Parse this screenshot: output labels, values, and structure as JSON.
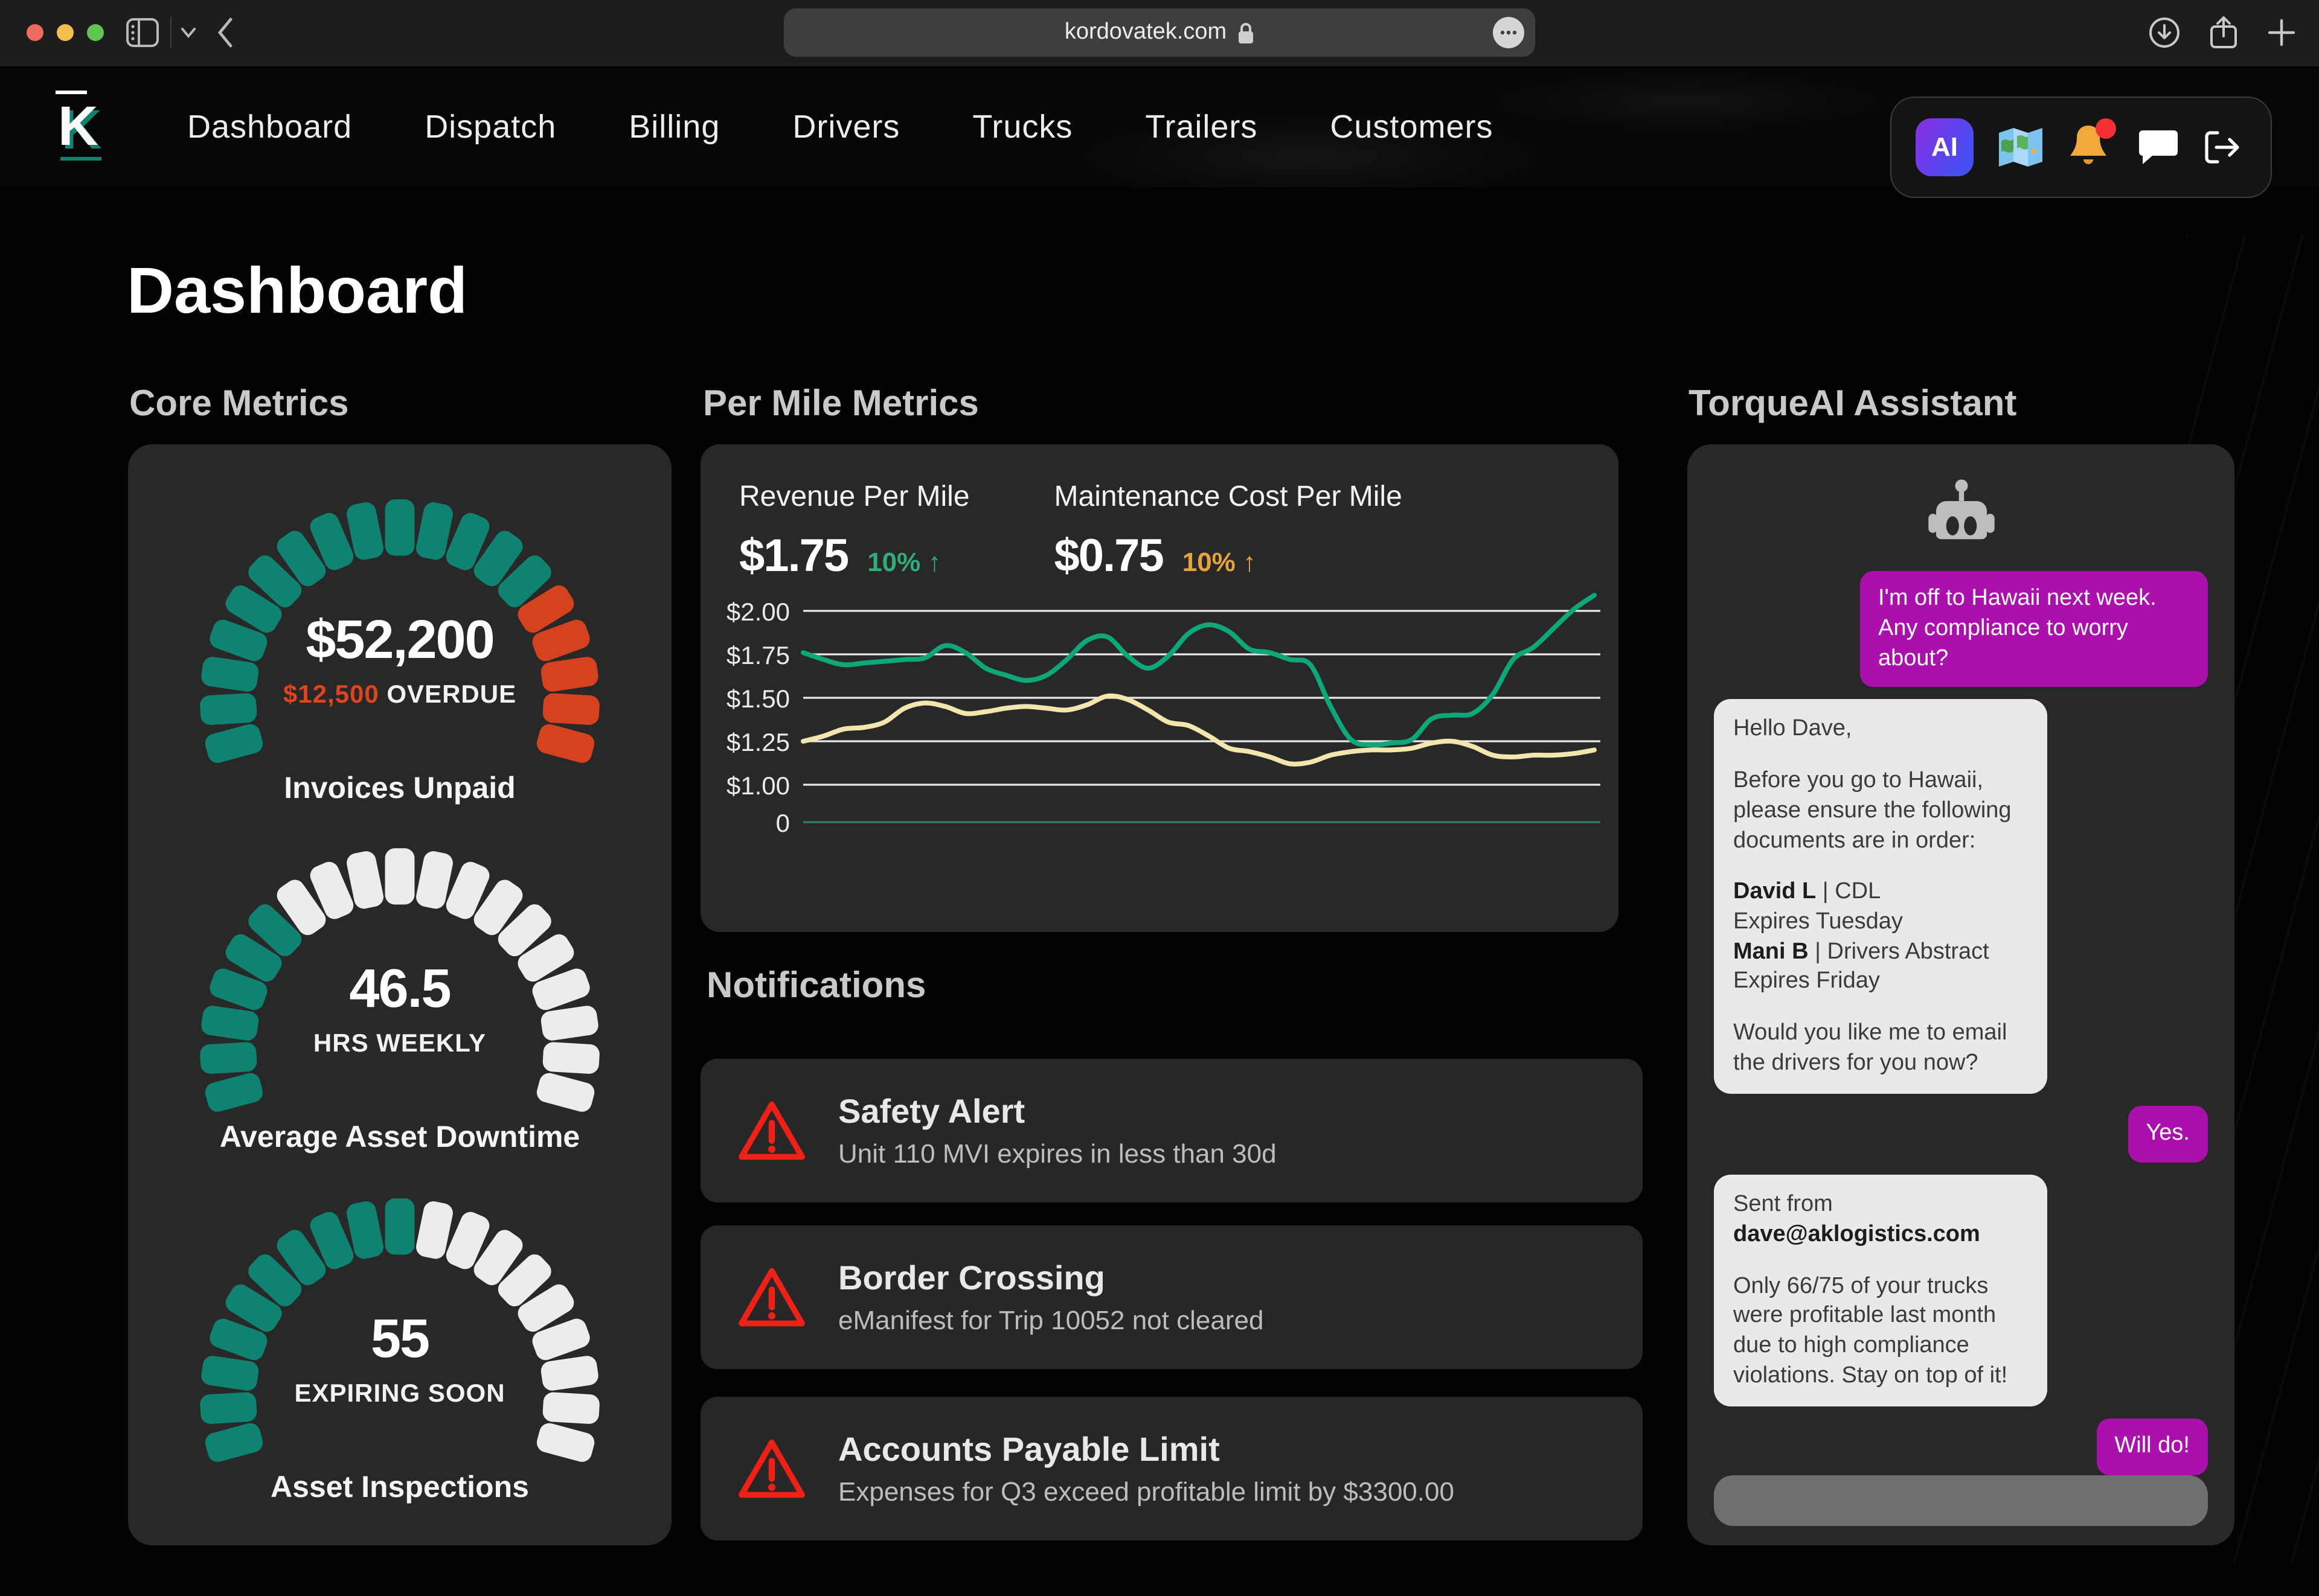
{
  "browser": {
    "url": "kordovatek.com",
    "traffic_lights": [
      "#ed6a5e",
      "#f5bf4f",
      "#61c554"
    ]
  },
  "nav": {
    "logo": "K",
    "items": [
      "Dashboard",
      "Dispatch",
      "Billing",
      "Drivers",
      "Trucks",
      "Trailers",
      "Customers"
    ],
    "ai_button": "AI",
    "bell_has_alert": true
  },
  "page": {
    "title": "Dashboard"
  },
  "core_metrics": {
    "heading": "Core Metrics",
    "gauges": [
      {
        "value": "$52,200",
        "sub_highlight": "$12,500",
        "sub_highlight_color": "#e0441f",
        "sub_rest": " OVERDUE",
        "label": "Invoices Unpaid",
        "segments": 19,
        "filled": 14,
        "filled_color": "#0f8372",
        "rest_color": "#d6421f"
      },
      {
        "value": "46.5",
        "sub_highlight": "",
        "sub_highlight_color": "",
        "sub_rest": "HRS WEEKLY",
        "label": "Average Asset Downtime",
        "segments": 19,
        "filled": 6,
        "filled_color": "#0f8372",
        "rest_color": "#ececec"
      },
      {
        "value": "55",
        "sub_highlight": "",
        "sub_highlight_color": "",
        "sub_rest": "EXPIRING SOON",
        "label": "Asset Inspections",
        "segments": 19,
        "filled": 10,
        "filled_color": "#0f8372",
        "rest_color": "#ececec"
      }
    ]
  },
  "per_mile": {
    "heading": "Per Mile Metrics",
    "metrics": [
      {
        "label": "Revenue Per Mile",
        "value": "$1.75",
        "delta": "10% ↑",
        "delta_color": "#2fae7c"
      },
      {
        "label": "Maintenance Cost Per Mile",
        "value": "$0.75",
        "delta": "10% ↑",
        "delta_color": "#e6a53c"
      }
    ]
  },
  "chart_data": {
    "type": "line",
    "title": "Per Mile Metrics",
    "xlabel": "",
    "ylabel": "",
    "y_ticks": [
      "$2.00",
      "$1.75",
      "$1.50",
      "$1.25",
      "$1.00",
      "0"
    ],
    "y_tick_values": [
      2.0,
      1.75,
      1.5,
      1.25,
      1.0,
      0
    ],
    "ylim": [
      0,
      2.1
    ],
    "grid": "horizontal",
    "legend": "none (series named by metric headers above chart)",
    "baseline_color": "#2c8063",
    "series": [
      {
        "name": "Revenue Per Mile",
        "color": "#0da87a",
        "values": [
          1.76,
          1.72,
          1.69,
          1.7,
          1.71,
          1.72,
          1.73,
          1.8,
          1.76,
          1.67,
          1.63,
          1.6,
          1.63,
          1.72,
          1.83,
          1.85,
          1.74,
          1.67,
          1.74,
          1.87,
          1.92,
          1.88,
          1.78,
          1.76,
          1.72,
          1.69,
          1.45,
          1.26,
          1.23,
          1.24,
          1.26,
          1.38,
          1.4,
          1.41,
          1.52,
          1.72,
          1.79,
          1.9,
          2.01,
          2.09
        ]
      },
      {
        "name": "Maintenance Cost Per Mile",
        "color": "#f3e5ae",
        "values": [
          1.25,
          1.28,
          1.32,
          1.33,
          1.36,
          1.44,
          1.47,
          1.45,
          1.41,
          1.42,
          1.44,
          1.45,
          1.44,
          1.43,
          1.46,
          1.51,
          1.49,
          1.43,
          1.36,
          1.34,
          1.28,
          1.21,
          1.19,
          1.16,
          1.12,
          1.13,
          1.17,
          1.19,
          1.2,
          1.2,
          1.21,
          1.24,
          1.25,
          1.22,
          1.17,
          1.16,
          1.17,
          1.17,
          1.18,
          1.2
        ]
      }
    ]
  },
  "notifications": {
    "heading": "Notifications",
    "items": [
      {
        "title": "Safety Alert",
        "desc": "Unit 110 MVI expires in less than 30d"
      },
      {
        "title": "Border Crossing",
        "desc": "eManifest for Trip 10052 not cleared"
      },
      {
        "title": "Accounts Payable Limit",
        "desc": "Expenses for Q3 exceed profitable limit by $3300.00"
      }
    ]
  },
  "assistant": {
    "heading": "TorqueAI Assistant",
    "user_bubble_color": "#ac10ac",
    "input_value": "",
    "messages": [
      {
        "side": "user",
        "blocks": [
          [
            {
              "t": "I'm off to Hawaii next week. Any compliance to worry about?"
            }
          ]
        ]
      },
      {
        "side": "bot",
        "blocks": [
          [
            {
              "t": "Hello Dave,"
            }
          ],
          [
            {
              "t": "Before you go to Hawaii, please ensure the following documents are in order:"
            }
          ],
          [
            {
              "t": "David L",
              "b": true
            },
            {
              "t": " | CDL\nExpires Tuesday\n"
            },
            {
              "t": "Mani B",
              "b": true
            },
            {
              "t": " | Drivers Abstract\nExpires Friday"
            }
          ],
          [
            {
              "t": "Would you like me to email the drivers for you now?"
            }
          ]
        ]
      },
      {
        "side": "user",
        "blocks": [
          [
            {
              "t": "Yes."
            }
          ]
        ]
      },
      {
        "side": "bot",
        "blocks": [
          [
            {
              "t": "Sent from\n"
            },
            {
              "t": "dave@aklogistics.com",
              "b": true
            }
          ],
          [
            {
              "t": "Only 66/75 of your trucks were profitable last month due to high compliance violations. Stay on top of it!"
            }
          ]
        ]
      },
      {
        "side": "user",
        "blocks": [
          [
            {
              "t": "Will do!"
            }
          ]
        ]
      }
    ]
  }
}
